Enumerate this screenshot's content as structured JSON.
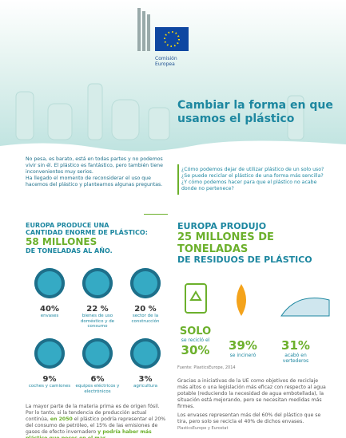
{
  "header": {
    "org": [
      "Comisión",
      "Europea"
    ],
    "title": "Cambiar la forma en que usamos el plástico"
  },
  "intro": {
    "left": [
      "No pesa, es barato, está en todas partes y no podemos vivir sin él. El plástico es fantástico, pero también tiene inconvenientes muy serios.",
      "Ha llegado el momento de reconsiderar el uso que hacemos del plástico y plantearnos algunas preguntas."
    ],
    "questions": [
      "¿Cómo podemos dejar de utilizar plástico de un solo uso?",
      "¿Se puede reciclar el plástico de una forma más sencilla?",
      "¿Y cómo podemos hacer para que el plástico no acabe donde no pertenece?"
    ]
  },
  "production": {
    "heading": [
      "EUROPA PRODUCE UNA",
      "CANTIDAD ENORME DE PLÁSTICO:"
    ],
    "highlight": "58 MILLONES",
    "unit": "DE TONELADAS AL AÑO.",
    "items": [
      {
        "value": "40%",
        "label": "envases"
      },
      {
        "value": "22 %",
        "label": "bienes de uso doméstico y de consumo"
      },
      {
        "value": "20 %",
        "label": "sector de la construcción"
      },
      {
        "value": "9%",
        "label": "coches y camiones"
      },
      {
        "value": "6%",
        "label": "equipos eléctricos y electrónicos"
      },
      {
        "value": "3%",
        "label": "agricultura"
      }
    ],
    "text": [
      "La mayor parte de la materia prima es de origen fósil. Por lo tanto, si la tendencia de producción actual continúa, ",
      "en 2050",
      " el plástico podría representar el 20% del consumo de petróleo, el 15% de las emisiones de gases de efecto invernadero ",
      "y podría haber más plástico que peces en el mar."
    ]
  },
  "waste": {
    "heading": "EUROPA PRODUJO",
    "highlight": [
      "25 MILLONES DE",
      "TONELADAS"
    ],
    "unit": "DE RESIDUOS DE PLÁSTICO",
    "items": [
      {
        "prefix": "SOLO",
        "label": "se recicló el",
        "value": "30%"
      },
      {
        "value": "39%",
        "label": "se incineró"
      },
      {
        "value": "31%",
        "label": "acabó en vertederos"
      }
    ],
    "source": "Fuente: PlasticsEurope, 2014",
    "text": [
      "Gracias a iniciativas de la UE como objetivos de reciclaje más altos o una legislación más eficaz con respecto al agua potable (reduciendo la necesidad de agua embotellada), la situación está mejorando, pero se necesitan medidas más firmes.",
      "Los envases representan más del 60% del plástico que se tira, pero solo se recicla el 40% de dichos envases."
    ],
    "source2": "PlasticsEurope y Eurostat"
  }
}
